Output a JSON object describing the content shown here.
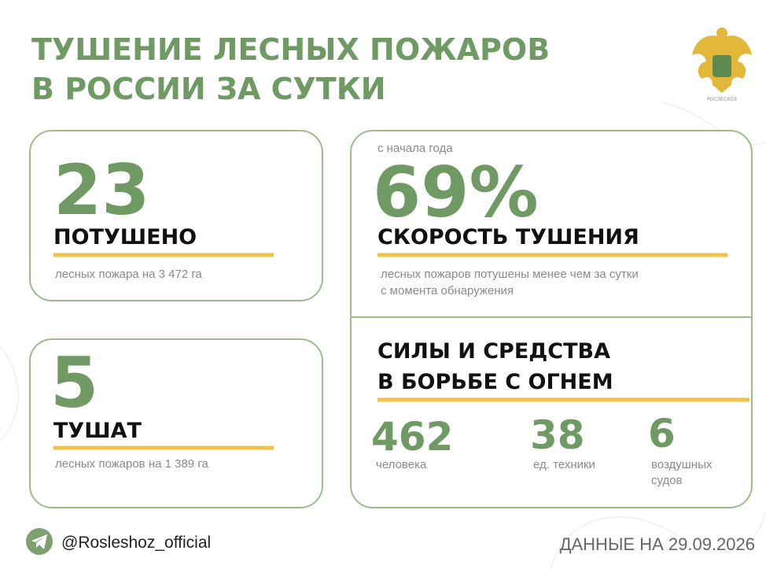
{
  "header": {
    "title": [
      "ТУШЕНИЕ ЛЕСНЫХ ПОЖАРОВ",
      "В РОССИИ ЗА СУТКИ"
    ],
    "logo_caption": "РОСЛЕСХОЗ"
  },
  "cards": [
    {
      "number": "23",
      "heading": "ПОТУШЕНО",
      "note": [
        "лесных пожара на 3 472 га"
      ]
    },
    {
      "number": "5",
      "heading": "ТУШАТ",
      "note": [
        "лесных пожаров на 1 389 га"
      ]
    },
    {
      "caption": "с начала года",
      "number": "69%",
      "heading": "СКОРОСТЬ ТУШЕНИЯ",
      "note": [
        "лесных пожаров потушены менее чем за сутки",
        "с момента обнаружения"
      ]
    }
  ],
  "forces": {
    "heading": [
      "СИЛЫ И СРЕДСТВА",
      "В БОРЬБЕ С ОГНЕМ"
    ],
    "items": [
      {
        "number": "462",
        "label": [
          "человека"
        ]
      },
      {
        "number": "38",
        "label": [
          "ед. техники"
        ]
      },
      {
        "number": "6",
        "label": [
          "воздушных",
          "судов"
        ]
      }
    ]
  },
  "footer": {
    "handle": "@Rosleshoz_official",
    "date": "ДАННЫЕ НА 29.09.2026"
  }
}
